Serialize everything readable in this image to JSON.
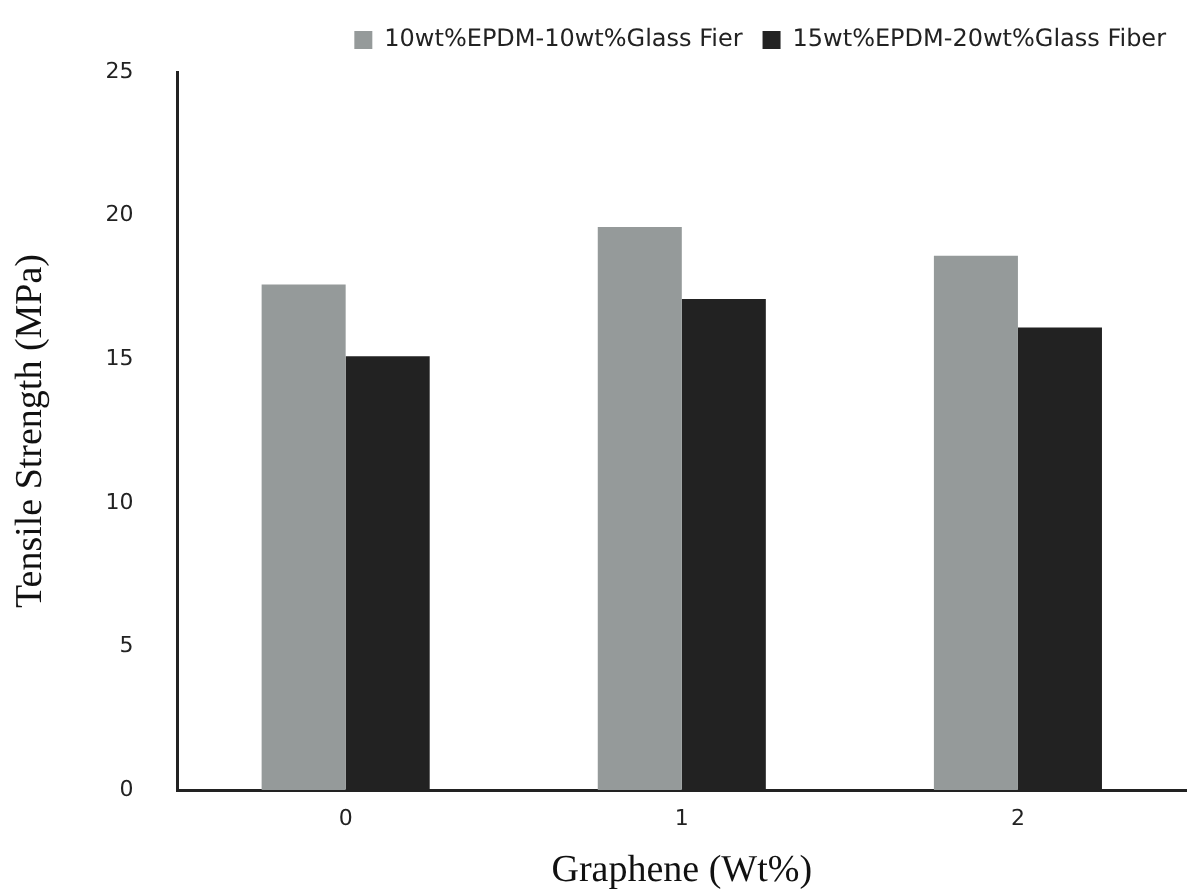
{
  "chart_data": {
    "type": "bar",
    "xlabel": "Graphene (Wt%)",
    "ylabel": "Tensile Strength (MPa)",
    "categories": [
      "0",
      "1",
      "2"
    ],
    "series": [
      {
        "name": "10wt%EPDM-10wt%Glass Fier",
        "color": "#959a9a",
        "values": [
          17.6,
          19.6,
          18.6
        ]
      },
      {
        "name": "15wt%EPDM-20wt%Glass Fiber",
        "color": "#222222",
        "values": [
          15.1,
          17.1,
          16.1
        ]
      }
    ],
    "ylim": [
      0,
      25
    ],
    "yticks": [
      0,
      5,
      10,
      15,
      20,
      25
    ],
    "legend": "top right",
    "grid": false
  }
}
